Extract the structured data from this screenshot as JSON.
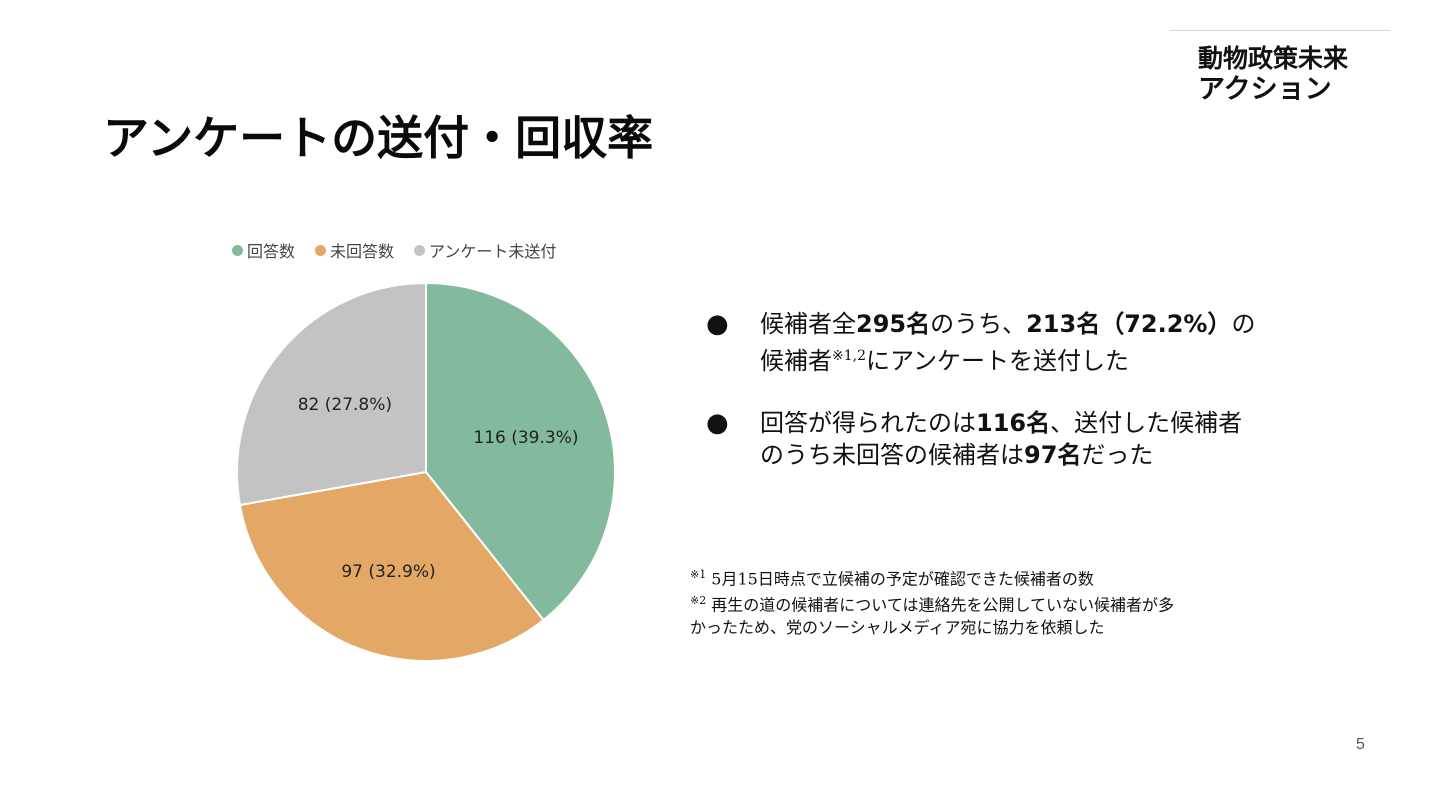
{
  "logo": {
    "line1": "動物政策未来",
    "line2": "アクション"
  },
  "title": "アンケートの送付・回収率",
  "chart_data": {
    "type": "pie",
    "categories": [
      "回答数",
      "未回答数",
      "アンケート未送付"
    ],
    "values": [
      116,
      97,
      82
    ],
    "percentages": [
      39.3,
      32.9,
      27.8
    ],
    "data_labels": [
      "116 (39.3%)",
      "97 (32.9%)",
      "82 (27.8%)"
    ],
    "colors": [
      "#83ba9e",
      "#e3a865",
      "#c3c3c3"
    ],
    "legend_position": "top",
    "start": "12 o'clock, clockwise"
  },
  "bullets": [
    {
      "t1": "候補者全",
      "b1": "295名",
      "t2": "のうち、",
      "b2": "213名（72.2%）",
      "t3": "の",
      "t4": "候補者",
      "sup": "※1,2",
      "t5": "にアンケートを送付した"
    },
    {
      "t1": "回答が得られたのは",
      "b1": "116名",
      "t2": "、送付した候補者",
      "t3": "のうち未回答の候補者は",
      "b2": "97名",
      "t4": "だった"
    }
  ],
  "notes": [
    {
      "mark": "※1",
      "text": " 5月15日時点で立候補の予定が確認できた候補者の数"
    },
    {
      "mark": "※2",
      "text": " 再生の道の候補者については連絡先を公開していない候補者が多",
      "text2": "かったため、党のソーシャルメディア宛に協力を依頼した"
    }
  ],
  "page_number": "5"
}
